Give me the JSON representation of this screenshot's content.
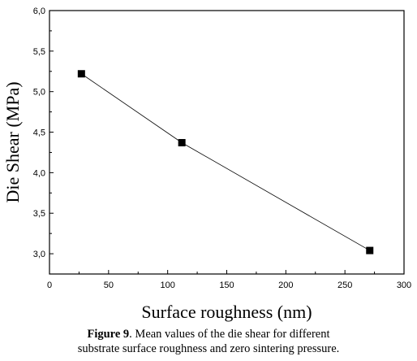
{
  "chart_data": {
    "type": "line",
    "xlabel": "Surface roughness (nm)",
    "ylabel": "Die Shear (MPa)",
    "xlim": [
      0,
      300
    ],
    "ylim": [
      2.75,
      6.0
    ],
    "x_ticks": [
      0,
      50,
      100,
      150,
      200,
      250,
      300
    ],
    "x_tick_labels": [
      "0",
      "50",
      "100",
      "150",
      "200",
      "250",
      "300"
    ],
    "y_ticks": [
      3.0,
      3.5,
      4.0,
      4.5,
      5.0,
      5.5,
      6.0
    ],
    "y_tick_labels": [
      "3,0",
      "3,5",
      "4,0",
      "4,5",
      "5,0",
      "5,5",
      "6,0"
    ],
    "grid": false,
    "marker": "square",
    "series": [
      {
        "x": [
          27,
          112,
          271
        ],
        "y": [
          5.22,
          4.37,
          3.04
        ],
        "color": "#000000"
      }
    ]
  },
  "caption": {
    "label": "Figure 9",
    "line1": ". Mean values of the die shear for different",
    "line2": "substrate surface roughness and zero sintering pressure."
  }
}
